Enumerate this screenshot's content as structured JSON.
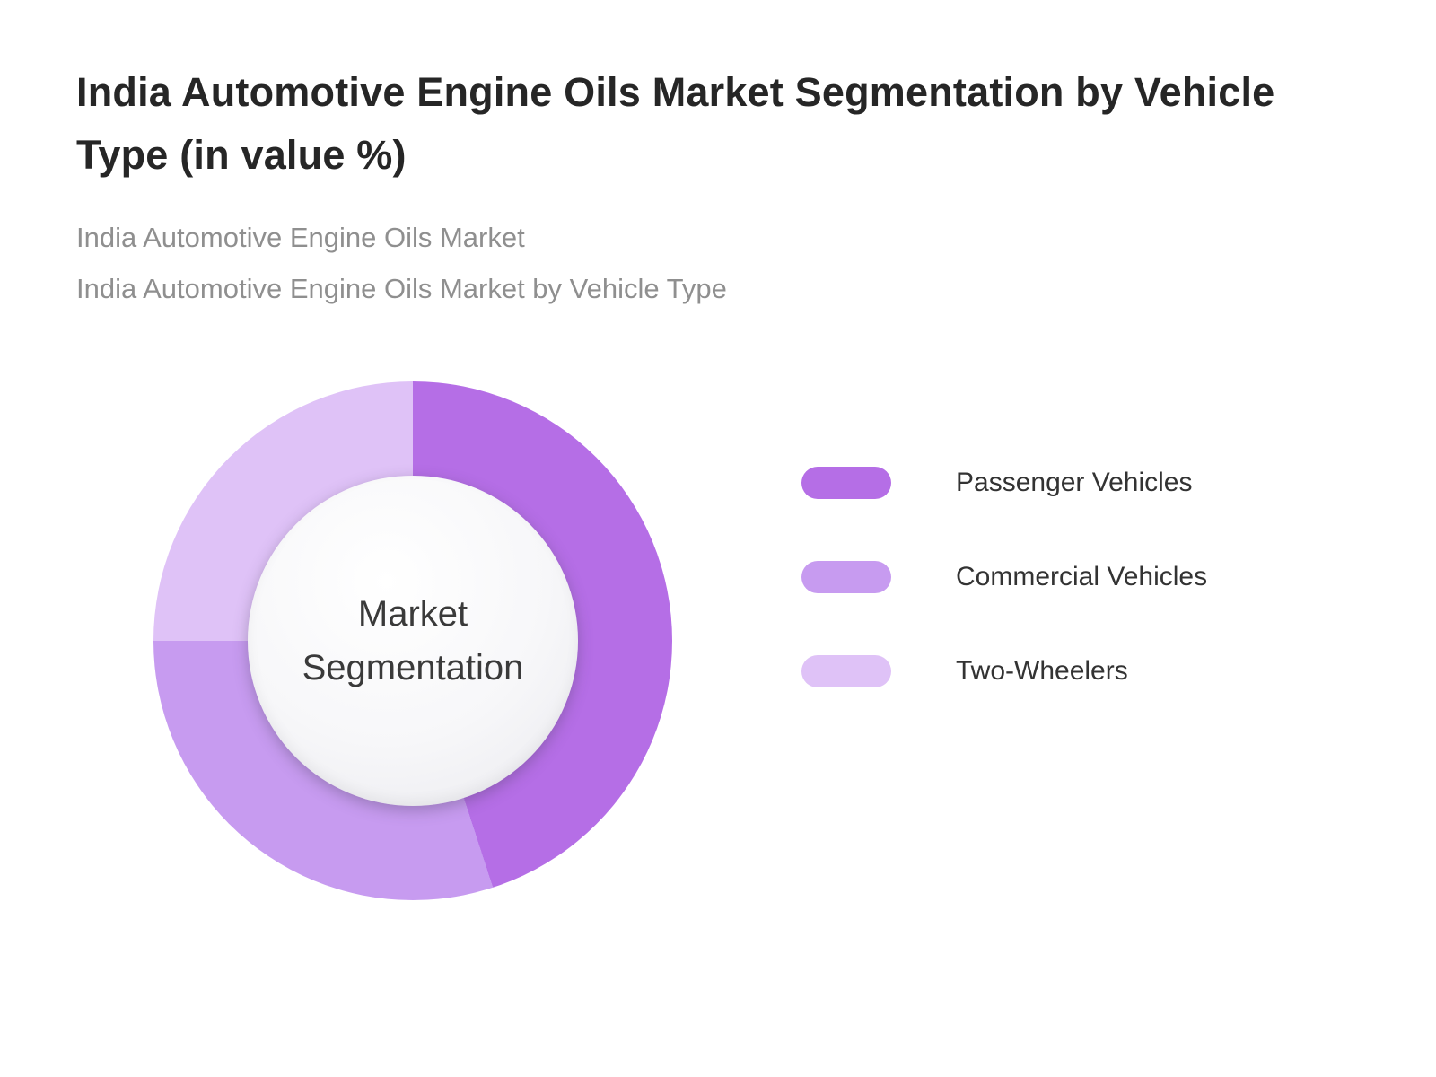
{
  "header": {
    "title": "India Automotive Engine Oils Market Segmentation by Vehicle Type (in value %)",
    "subtitle1": "India Automotive Engine Oils Market",
    "subtitle2": "India Automotive Engine Oils Market by Vehicle Type"
  },
  "chart_data": {
    "type": "pie",
    "subtype": "donut",
    "title": "India Automotive Engine Oils Market Segmentation by Vehicle Type (in value %)",
    "center_label": "Market Segmentation",
    "start_angle_deg": 0,
    "direction": "clockwise",
    "values_shown": false,
    "legend_position": "right",
    "segments": [
      {
        "label": "Passenger Vehicles",
        "value": 45,
        "color": "#b56ee6"
      },
      {
        "label": "Commercial Vehicles",
        "value": 30,
        "color": "#c79bf0"
      },
      {
        "label": "Two-Wheelers",
        "value": 25,
        "color": "#dfc2f7"
      }
    ]
  }
}
